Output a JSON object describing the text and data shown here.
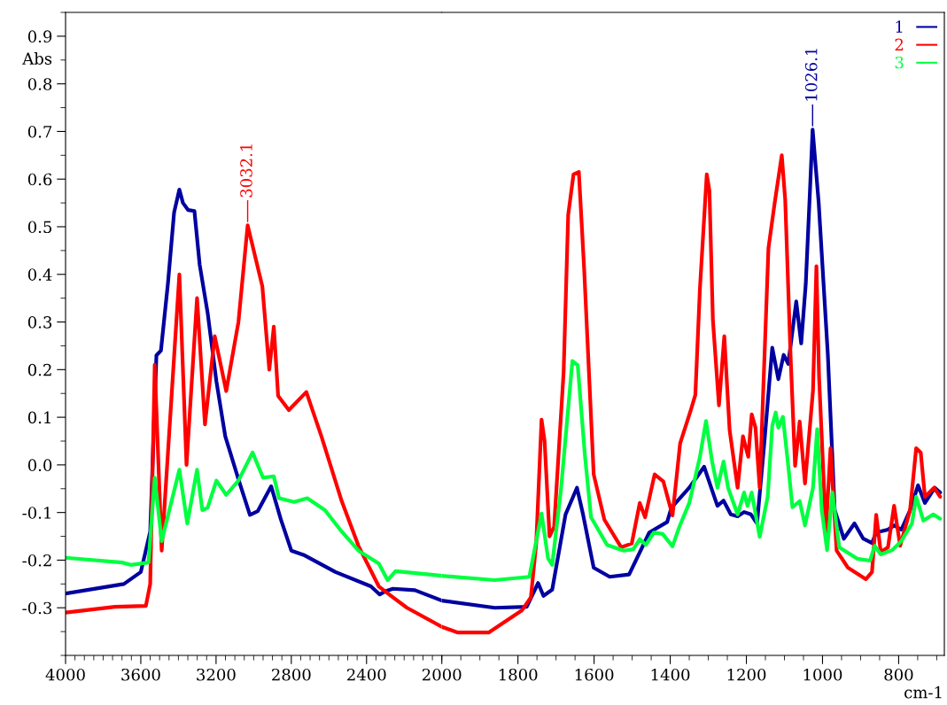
{
  "chart_data": [
    {
      "type": "line",
      "ylabel": "Abs",
      "xlim": [
        4000,
        2000
      ],
      "xticks": [
        4000,
        3600,
        3200,
        2800,
        2400,
        2000
      ],
      "ylim": [
        -0.4,
        0.95
      ],
      "yticks": [
        -0.3,
        -0.2,
        -0.1,
        {
          "value": 0,
          "label": "0.0"
        },
        0.1,
        0.2,
        0.3,
        0.4,
        0.5,
        0.6,
        0.7,
        0.8,
        0.9
      ],
      "marker": "none",
      "line_style": "solid",
      "annotations": [
        {
          "text": "3032.1",
          "x": 3032,
          "y": 0.503
        }
      ],
      "series": [
        {
          "color": "#0000a0",
          "x": [
            4000,
            3690,
            3600,
            3550,
            3517,
            3493,
            3456,
            3423,
            3395,
            3376,
            3348,
            3315,
            3287,
            3245,
            3198,
            3151,
            3081,
            3020,
            2978,
            2907,
            2856,
            2800,
            2729,
            2565,
            2377,
            2330,
            2298,
            2260,
            2143,
            2000
          ],
          "values": [
            -0.27,
            -0.25,
            -0.225,
            -0.14,
            0.23,
            0.24,
            0.38,
            0.53,
            0.578,
            0.55,
            0.535,
            0.533,
            0.42,
            0.32,
            0.175,
            0.06,
            -0.03,
            -0.105,
            -0.097,
            -0.045,
            -0.114,
            -0.18,
            -0.19,
            -0.225,
            -0.255,
            -0.272,
            -0.265,
            -0.26,
            -0.263,
            -0.285
          ]
        },
        {
          "color": "#ff0000",
          "x": [
            4000,
            3737,
            3573,
            3550,
            3526,
            3489,
            3395,
            3357,
            3301,
            3259,
            3207,
            3146,
            3081,
            3032,
            2954,
            2917,
            2893,
            2870,
            2813,
            2720,
            2640,
            2532,
            2443,
            2335,
            2260,
            2185,
            2000
          ],
          "values": [
            -0.31,
            -0.298,
            -0.296,
            -0.25,
            0.21,
            -0.18,
            0.4,
            0.0,
            0.35,
            0.085,
            0.27,
            0.155,
            0.3,
            0.503,
            0.375,
            0.2,
            0.29,
            0.145,
            0.115,
            0.153,
            0.06,
            -0.076,
            -0.17,
            -0.255,
            -0.278,
            -0.3,
            -0.34
          ]
        },
        {
          "color": "#00ff40",
          "x": [
            4000,
            3700,
            3653,
            3559,
            3526,
            3489,
            3395,
            3353,
            3301,
            3273,
            3245,
            3198,
            3146,
            3081,
            3006,
            2950,
            2893,
            2865,
            2785,
            2715,
            2621,
            2532,
            2443,
            2335,
            2288,
            2246,
            2044,
            2000
          ],
          "values": [
            -0.195,
            -0.205,
            -0.21,
            -0.205,
            -0.027,
            -0.16,
            -0.01,
            -0.123,
            -0.01,
            -0.095,
            -0.09,
            -0.033,
            -0.063,
            -0.033,
            0.026,
            -0.027,
            -0.024,
            -0.07,
            -0.078,
            -0.07,
            -0.095,
            -0.14,
            -0.18,
            -0.207,
            -0.242,
            -0.223,
            -0.231,
            -0.233
          ]
        }
      ]
    },
    {
      "type": "line",
      "xlabel": "cm-1",
      "xlim": [
        2000,
        680
      ],
      "xticks": [
        1800,
        1600,
        1400,
        1200,
        1000,
        800
      ],
      "ylim": [
        -0.4,
        0.95
      ],
      "tick_labels": "x",
      "legend": "top right",
      "marker": "none",
      "line_style": "solid",
      "annotations": [
        {
          "text": "1026.1",
          "x": 1026,
          "y": 0.704
        }
      ],
      "series": [
        {
          "name": "1",
          "color": "#0000a0",
          "x": [
            2000,
            1861,
            1777,
            1747,
            1733,
            1710,
            1675,
            1645,
            1629,
            1601,
            1559,
            1508,
            1455,
            1408,
            1397,
            1350,
            1311,
            1288,
            1276,
            1260,
            1241,
            1223,
            1206,
            1188,
            1172,
            1153,
            1132,
            1116,
            1102,
            1090,
            1069,
            1056,
            1044,
            1034,
            1026,
            1010,
            998,
            986,
            968,
            944,
            916,
            893,
            870,
            859,
            828,
            812,
            793,
            770,
            749,
            731,
            705,
            691
          ],
          "values": [
            -0.285,
            -0.3,
            -0.298,
            -0.248,
            -0.275,
            -0.262,
            -0.104,
            -0.048,
            -0.104,
            -0.216,
            -0.235,
            -0.23,
            -0.142,
            -0.12,
            -0.09,
            -0.048,
            -0.004,
            -0.058,
            -0.086,
            -0.075,
            -0.104,
            -0.108,
            -0.099,
            -0.104,
            -0.123,
            0.045,
            0.246,
            0.18,
            0.231,
            0.212,
            0.343,
            0.255,
            0.38,
            0.557,
            0.704,
            0.55,
            0.39,
            0.231,
            -0.095,
            -0.155,
            -0.123,
            -0.155,
            -0.164,
            -0.142,
            -0.136,
            -0.127,
            -0.136,
            -0.095,
            -0.043,
            -0.08,
            -0.048,
            -0.058
          ]
        },
        {
          "name": "2",
          "color": "#ff0000",
          "x": [
            2000,
            1958,
            1877,
            1789,
            1766,
            1752,
            1738,
            1730,
            1717,
            1705,
            1680,
            1668,
            1654,
            1640,
            1626,
            1601,
            1573,
            1529,
            1501,
            1480,
            1466,
            1441,
            1418,
            1394,
            1374,
            1346,
            1334,
            1322,
            1304,
            1297,
            1288,
            1272,
            1258,
            1244,
            1223,
            1209,
            1195,
            1186,
            1176,
            1165,
            1142,
            1126,
            1107,
            1098,
            1084,
            1072,
            1060,
            1046,
            1025,
            1016,
            1009,
            991,
            979,
            963,
            933,
            886,
            870,
            859,
            847,
            828,
            812,
            796,
            770,
            754,
            742,
            731,
            707,
            691
          ],
          "values": [
            -0.34,
            -0.352,
            -0.352,
            -0.305,
            -0.278,
            -0.165,
            0.095,
            0.05,
            -0.15,
            -0.13,
            0.195,
            0.525,
            0.61,
            0.615,
            0.41,
            -0.02,
            -0.115,
            -0.173,
            -0.165,
            -0.08,
            -0.11,
            -0.02,
            -0.035,
            -0.106,
            0.045,
            0.115,
            0.147,
            0.37,
            0.61,
            0.575,
            0.305,
            0.125,
            0.27,
            0.073,
            -0.048,
            0.06,
            0.017,
            0.106,
            0.078,
            -0.048,
            0.455,
            0.548,
            0.65,
            0.557,
            0.231,
            -0.002,
            0.091,
            -0.039,
            0.156,
            0.417,
            0.184,
            -0.14,
            0.035,
            -0.18,
            -0.216,
            -0.24,
            -0.225,
            -0.105,
            -0.183,
            -0.173,
            -0.086,
            -0.17,
            -0.095,
            0.035,
            0.026,
            -0.067,
            -0.048,
            -0.067
          ]
        },
        {
          "name": "3",
          "color": "#00ff40",
          "x": [
            2000,
            1861,
            1770,
            1738,
            1721,
            1710,
            1687,
            1657,
            1643,
            1624,
            1608,
            1566,
            1522,
            1497,
            1480,
            1464,
            1443,
            1420,
            1394,
            1376,
            1350,
            1322,
            1306,
            1290,
            1276,
            1260,
            1248,
            1223,
            1206,
            1197,
            1186,
            1165,
            1144,
            1132,
            1123,
            1116,
            1104,
            1090,
            1079,
            1060,
            1046,
            1025,
            1014,
            1002,
            988,
            974,
            956,
            909,
            875,
            863,
            847,
            817,
            793,
            765,
            754,
            735,
            709,
            691
          ],
          "values": [
            -0.233,
            -0.242,
            -0.235,
            -0.102,
            -0.196,
            -0.21,
            -0.052,
            0.218,
            0.209,
            0.019,
            -0.11,
            -0.168,
            -0.18,
            -0.177,
            -0.156,
            -0.168,
            -0.142,
            -0.145,
            -0.171,
            -0.13,
            -0.08,
            0.017,
            0.092,
            0.007,
            -0.048,
            0.007,
            -0.048,
            -0.104,
            -0.058,
            -0.086,
            -0.058,
            -0.151,
            -0.067,
            0.082,
            0.11,
            0.078,
            0.101,
            -0.002,
            -0.089,
            -0.076,
            -0.127,
            -0.048,
            0.075,
            -0.095,
            -0.179,
            -0.058,
            -0.173,
            -0.197,
            -0.201,
            -0.17,
            -0.188,
            -0.179,
            -0.16,
            -0.123,
            -0.067,
            -0.117,
            -0.104,
            -0.113
          ]
        }
      ]
    }
  ]
}
